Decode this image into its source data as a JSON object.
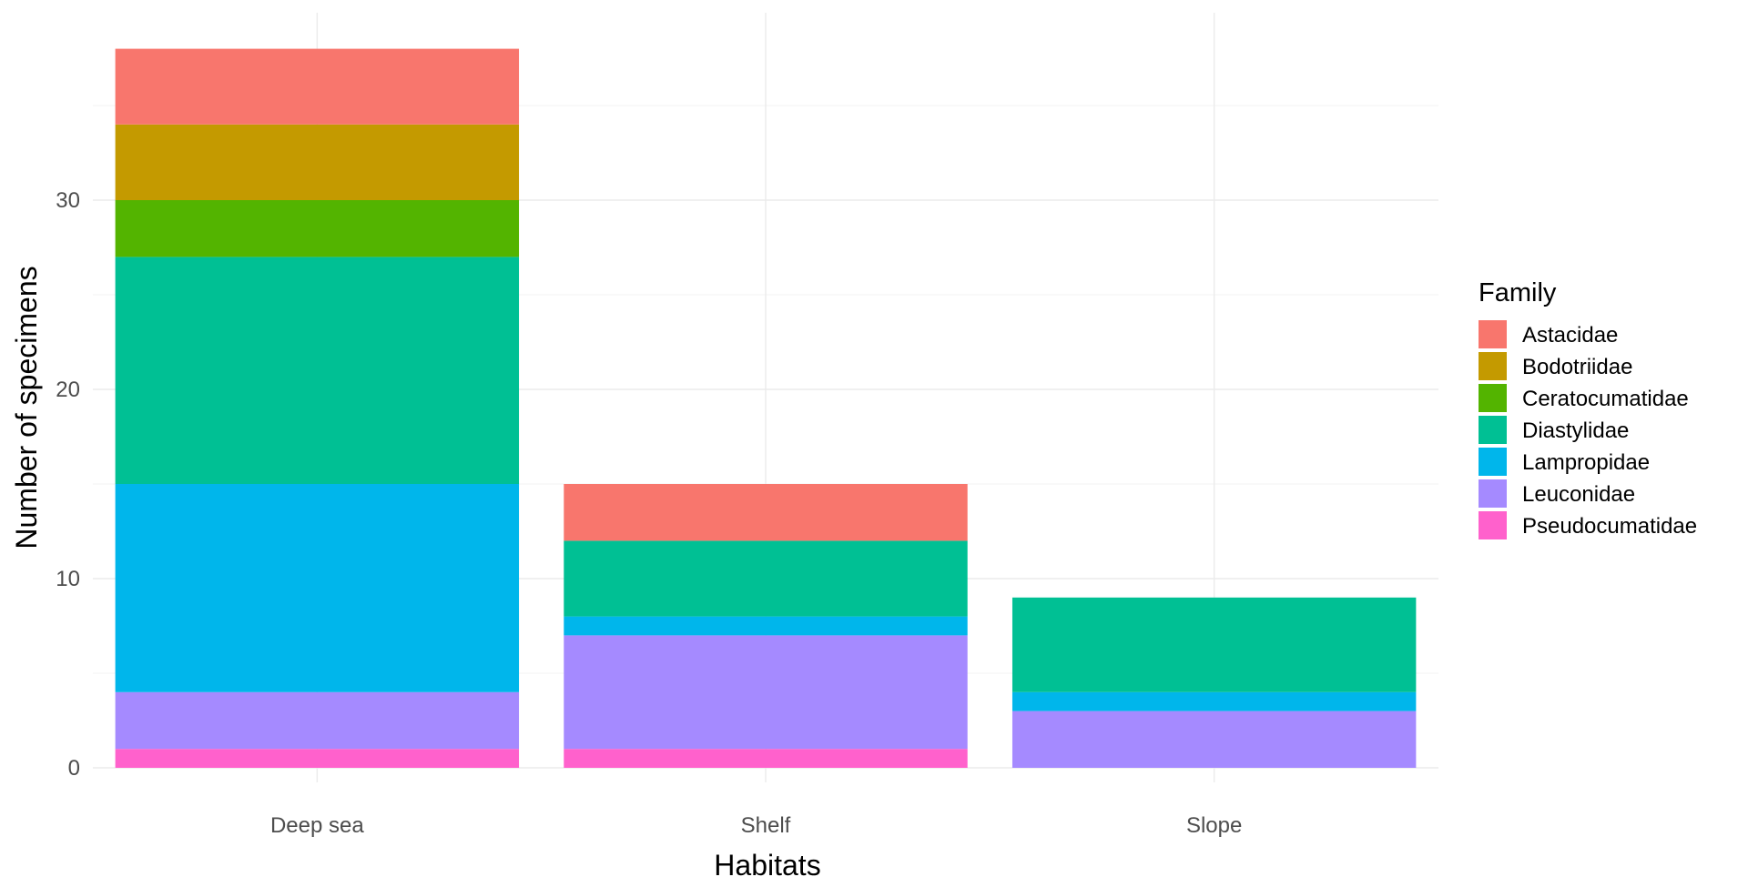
{
  "chart_data": {
    "type": "bar",
    "stacked": true,
    "xlabel": "Habitats",
    "ylabel": "Number of specimens",
    "ylim": [
      0,
      38
    ],
    "y_ticks": [
      0,
      10,
      20,
      30
    ],
    "grid": true,
    "legend_position": "right",
    "legend_title": "Family",
    "categories": [
      "Deep sea",
      "Shelf",
      "Slope"
    ],
    "series": [
      {
        "name": "Pseudocumatidae",
        "color": "#FF61CC",
        "values": [
          1,
          1,
          0
        ]
      },
      {
        "name": "Leuconidae",
        "color": "#A58AFF",
        "values": [
          3,
          6,
          3
        ]
      },
      {
        "name": "Lampropidae",
        "color": "#00B6EB",
        "values": [
          11,
          1,
          1
        ]
      },
      {
        "name": "Diastylidae",
        "color": "#00C094",
        "values": [
          12,
          4,
          5
        ]
      },
      {
        "name": "Ceratocumatidae",
        "color": "#53B400",
        "values": [
          3,
          0,
          0
        ]
      },
      {
        "name": "Bodotriidae",
        "color": "#C49A00",
        "values": [
          4,
          0,
          0
        ]
      },
      {
        "name": "Astacidae",
        "color": "#F8766D",
        "values": [
          4,
          3,
          0
        ]
      }
    ],
    "legend_order": [
      "Astacidae",
      "Bodotriidae",
      "Ceratocumatidae",
      "Diastylidae",
      "Lampropidae",
      "Leuconidae",
      "Pseudocumatidae"
    ]
  }
}
